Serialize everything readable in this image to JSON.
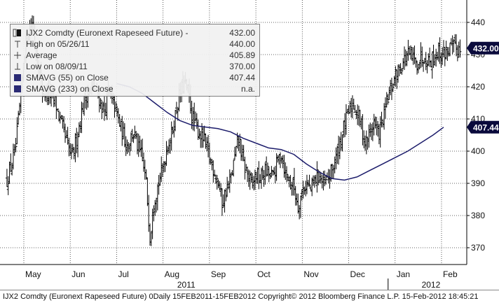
{
  "chart_data": {
    "type": "ohlc",
    "title": "IJX2 Comdty (Euronext Rapeseed Future)",
    "ylim": [
      366,
      446
    ],
    "y_ticks": [
      370,
      380,
      390,
      400,
      410,
      420,
      430,
      440
    ],
    "grid": true,
    "legend_position": "top-left",
    "months": [
      {
        "label": "May",
        "x": 0
      },
      {
        "label": "Jun",
        "x": 22
      },
      {
        "label": "Jul",
        "x": 44
      },
      {
        "label": "Aug",
        "x": 66
      },
      {
        "label": "Sep",
        "x": 88
      },
      {
        "label": "Oct",
        "x": 110
      },
      {
        "label": "Nov",
        "x": 132
      },
      {
        "label": "Dec",
        "x": 154
      },
      {
        "label": "Jan",
        "x": 176
      },
      {
        "label": "Feb",
        "x": 198
      }
    ],
    "year_labels": [
      {
        "label": "2011",
        "x": 77
      },
      {
        "label": "2012",
        "x": 193
      }
    ],
    "legend": [
      {
        "label": "IJX2 Comdty (Euronext Rapeseed Future) -",
        "value": "432.00",
        "marker": "square-icon"
      },
      {
        "label": "High on 05/26/11",
        "value": "440.00",
        "marker": "high-marker-icon"
      },
      {
        "label": "Average",
        "value": "405.89",
        "marker": "average-marker-icon"
      },
      {
        "label": "Low on 08/09/11",
        "value": "370.00",
        "marker": "low-marker-icon"
      },
      {
        "label": "SMAVG (55) on Close",
        "value": "407.44",
        "marker": "navy-square-icon"
      },
      {
        "label": "SMAVG (233) on Close",
        "value": "n.a.",
        "marker": "navy-square-icon"
      }
    ],
    "last_price": "432.00",
    "sma_last": "407.44",
    "price_series": {
      "name": "IJX2 Comdty (Euronext Rapeseed Future)",
      "x_start": -8,
      "x_end": 207,
      "step": 0.6,
      "anchors": [
        [
          -8,
          391
        ],
        [
          -4,
          400
        ],
        [
          -1,
          420
        ],
        [
          0,
          430
        ],
        [
          2,
          437
        ],
        [
          4,
          440
        ],
        [
          6,
          430
        ],
        [
          9,
          418
        ],
        [
          12,
          418
        ],
        [
          15,
          415
        ],
        [
          17,
          410
        ],
        [
          21,
          401
        ],
        [
          23,
          398
        ],
        [
          25,
          404
        ],
        [
          28,
          414
        ],
        [
          30,
          418
        ],
        [
          33,
          420
        ],
        [
          36,
          416
        ],
        [
          38,
          412
        ],
        [
          40,
          418
        ],
        [
          43,
          414
        ],
        [
          46,
          407
        ],
        [
          49,
          402
        ],
        [
          52,
          406
        ],
        [
          54,
          401
        ],
        [
          56,
          398
        ],
        [
          58,
          390
        ],
        [
          60,
          372
        ],
        [
          61,
          383
        ],
        [
          63,
          388
        ],
        [
          66,
          395
        ],
        [
          68,
          402
        ],
        [
          70,
          405
        ],
        [
          72,
          412
        ],
        [
          74,
          418
        ],
        [
          76,
          421
        ],
        [
          78,
          418
        ],
        [
          80,
          410
        ],
        [
          82,
          407
        ],
        [
          85,
          404
        ],
        [
          87,
          400
        ],
        [
          89,
          396
        ],
        [
          92,
          391
        ],
        [
          94,
          384
        ],
        [
          96,
          388
        ],
        [
          98,
          391
        ],
        [
          100,
          398
        ],
        [
          102,
          404
        ],
        [
          104,
          396
        ],
        [
          106,
          393
        ],
        [
          108,
          389
        ],
        [
          110,
          393
        ],
        [
          112,
          391
        ],
        [
          114,
          394
        ],
        [
          116,
          393
        ],
        [
          118,
          392
        ],
        [
          120,
          396
        ],
        [
          122,
          400
        ],
        [
          124,
          393
        ],
        [
          126,
          391
        ],
        [
          128,
          389
        ],
        [
          130,
          383
        ],
        [
          132,
          388
        ],
        [
          134,
          390
        ],
        [
          136,
          388
        ],
        [
          138,
          391
        ],
        [
          140,
          393
        ],
        [
          142,
          389
        ],
        [
          144,
          391
        ],
        [
          146,
          394
        ],
        [
          148,
          398
        ],
        [
          150,
          403
        ],
        [
          152,
          408
        ],
        [
          154,
          412
        ],
        [
          156,
          415
        ],
        [
          158,
          412
        ],
        [
          160,
          408
        ],
        [
          162,
          402
        ],
        [
          164,
          406
        ],
        [
          166,
          409
        ],
        [
          168,
          405
        ],
        [
          170,
          409
        ],
        [
          172,
          415
        ],
        [
          174,
          419
        ],
        [
          176,
          423
        ],
        [
          178,
          426
        ],
        [
          180,
          428
        ],
        [
          182,
          430
        ],
        [
          184,
          429
        ],
        [
          186,
          427
        ],
        [
          188,
          429
        ],
        [
          190,
          430
        ],
        [
          192,
          428
        ],
        [
          194,
          429
        ],
        [
          196,
          431
        ],
        [
          198,
          430
        ],
        [
          200,
          431
        ],
        [
          202,
          432
        ],
        [
          204,
          432
        ],
        [
          207,
          432
        ]
      ]
    },
    "sma_series": {
      "name": "SMAVG (55) on Close",
      "points": [
        [
          44,
          421
        ],
        [
          50,
          420
        ],
        [
          56,
          418
        ],
        [
          62,
          415
        ],
        [
          68,
          412
        ],
        [
          74,
          409.5
        ],
        [
          80,
          408
        ],
        [
          86,
          407.5
        ],
        [
          92,
          407
        ],
        [
          98,
          406
        ],
        [
          104,
          404
        ],
        [
          110,
          402.5
        ],
        [
          116,
          401
        ],
        [
          122,
          400.5
        ],
        [
          128,
          399
        ],
        [
          134,
          396
        ],
        [
          140,
          393.5
        ],
        [
          146,
          391.5
        ],
        [
          152,
          391
        ],
        [
          158,
          392
        ],
        [
          164,
          394
        ],
        [
          170,
          396
        ],
        [
          176,
          398
        ],
        [
          182,
          400
        ],
        [
          188,
          402.5
        ],
        [
          194,
          405
        ],
        [
          199,
          407.44
        ]
      ]
    }
  },
  "footer": {
    "text": "IJX2 Comdty (Euronext Rapeseed Future) 0Daily 15FEB2011-15FEB2012 Copyright© 2012 Bloomberg Finance L.P.  15-Feb-2012 18:45:21"
  },
  "colors": {
    "bars": "#000000",
    "sma_line": "#1c1c6b",
    "label_box": "#0a0a3c",
    "grid": "#333333"
  }
}
